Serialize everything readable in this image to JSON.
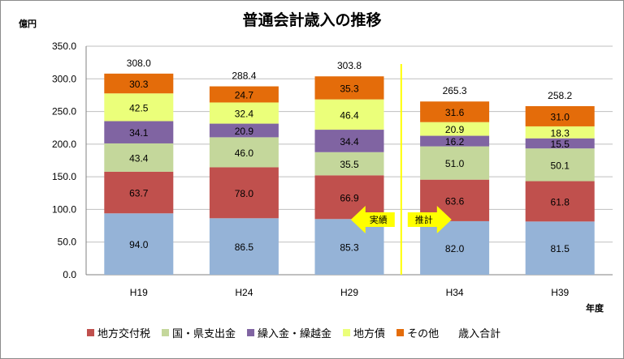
{
  "chart_data": {
    "type": "bar",
    "stacked": true,
    "title": "普通会計歳入の推移",
    "ylabel": "億円",
    "xlabel": "年度",
    "ylim": [
      0,
      350
    ],
    "yticks": [
      "0.0",
      "50.0",
      "100.0",
      "150.0",
      "200.0",
      "250.0",
      "300.0",
      "350.0"
    ],
    "grid": true,
    "categories": [
      "H19",
      "H24",
      "H29",
      "H34",
      "H39"
    ],
    "series": [
      {
        "name": "",
        "color": "#95b3d7",
        "values": [
          94.0,
          86.5,
          85.3,
          82.0,
          81.5
        ],
        "labels": [
          "94.0",
          "86.5",
          "85.3",
          "82.0",
          "81.5"
        ]
      },
      {
        "name": "地方交付税",
        "color": "#c0504d",
        "values": [
          63.7,
          78.0,
          66.9,
          63.6,
          61.8
        ],
        "labels": [
          "63.7",
          "78.0",
          "66.9",
          "63.6",
          "61.8"
        ]
      },
      {
        "name": "国・県支出金",
        "color": "#c4d79b",
        "values": [
          43.4,
          46.0,
          35.5,
          51.0,
          50.1
        ],
        "labels": [
          "43.4",
          "46.0",
          "35.5",
          "51.0",
          "50.1"
        ]
      },
      {
        "name": "繰入金・繰越金",
        "color": "#8064a2",
        "values": [
          34.1,
          20.9,
          34.4,
          16.2,
          15.5
        ],
        "labels": [
          "34.1",
          "20.9",
          "34.4",
          "16.2",
          "15.5"
        ]
      },
      {
        "name": "地方債",
        "color": "#ebff7a",
        "values": [
          42.5,
          32.4,
          46.4,
          20.9,
          18.3
        ],
        "labels": [
          "42.5",
          "32.4",
          "46.4",
          "20.9",
          "18.3"
        ]
      },
      {
        "name": "その他",
        "color": "#e46c0a",
        "values": [
          30.3,
          24.7,
          35.3,
          31.6,
          31.0
        ],
        "labels": [
          "30.3",
          "24.7",
          "35.3",
          "31.6",
          "31.0"
        ]
      }
    ],
    "totals": {
      "name": "歳入合計",
      "values": [
        308.0,
        288.4,
        303.8,
        265.3,
        258.2
      ],
      "labels": [
        "308.0",
        "288.4",
        "303.8",
        "265.3",
        "258.2"
      ]
    },
    "annotations": {
      "actual": "実績",
      "forecast": "推計"
    },
    "legend_position": "bottom"
  }
}
